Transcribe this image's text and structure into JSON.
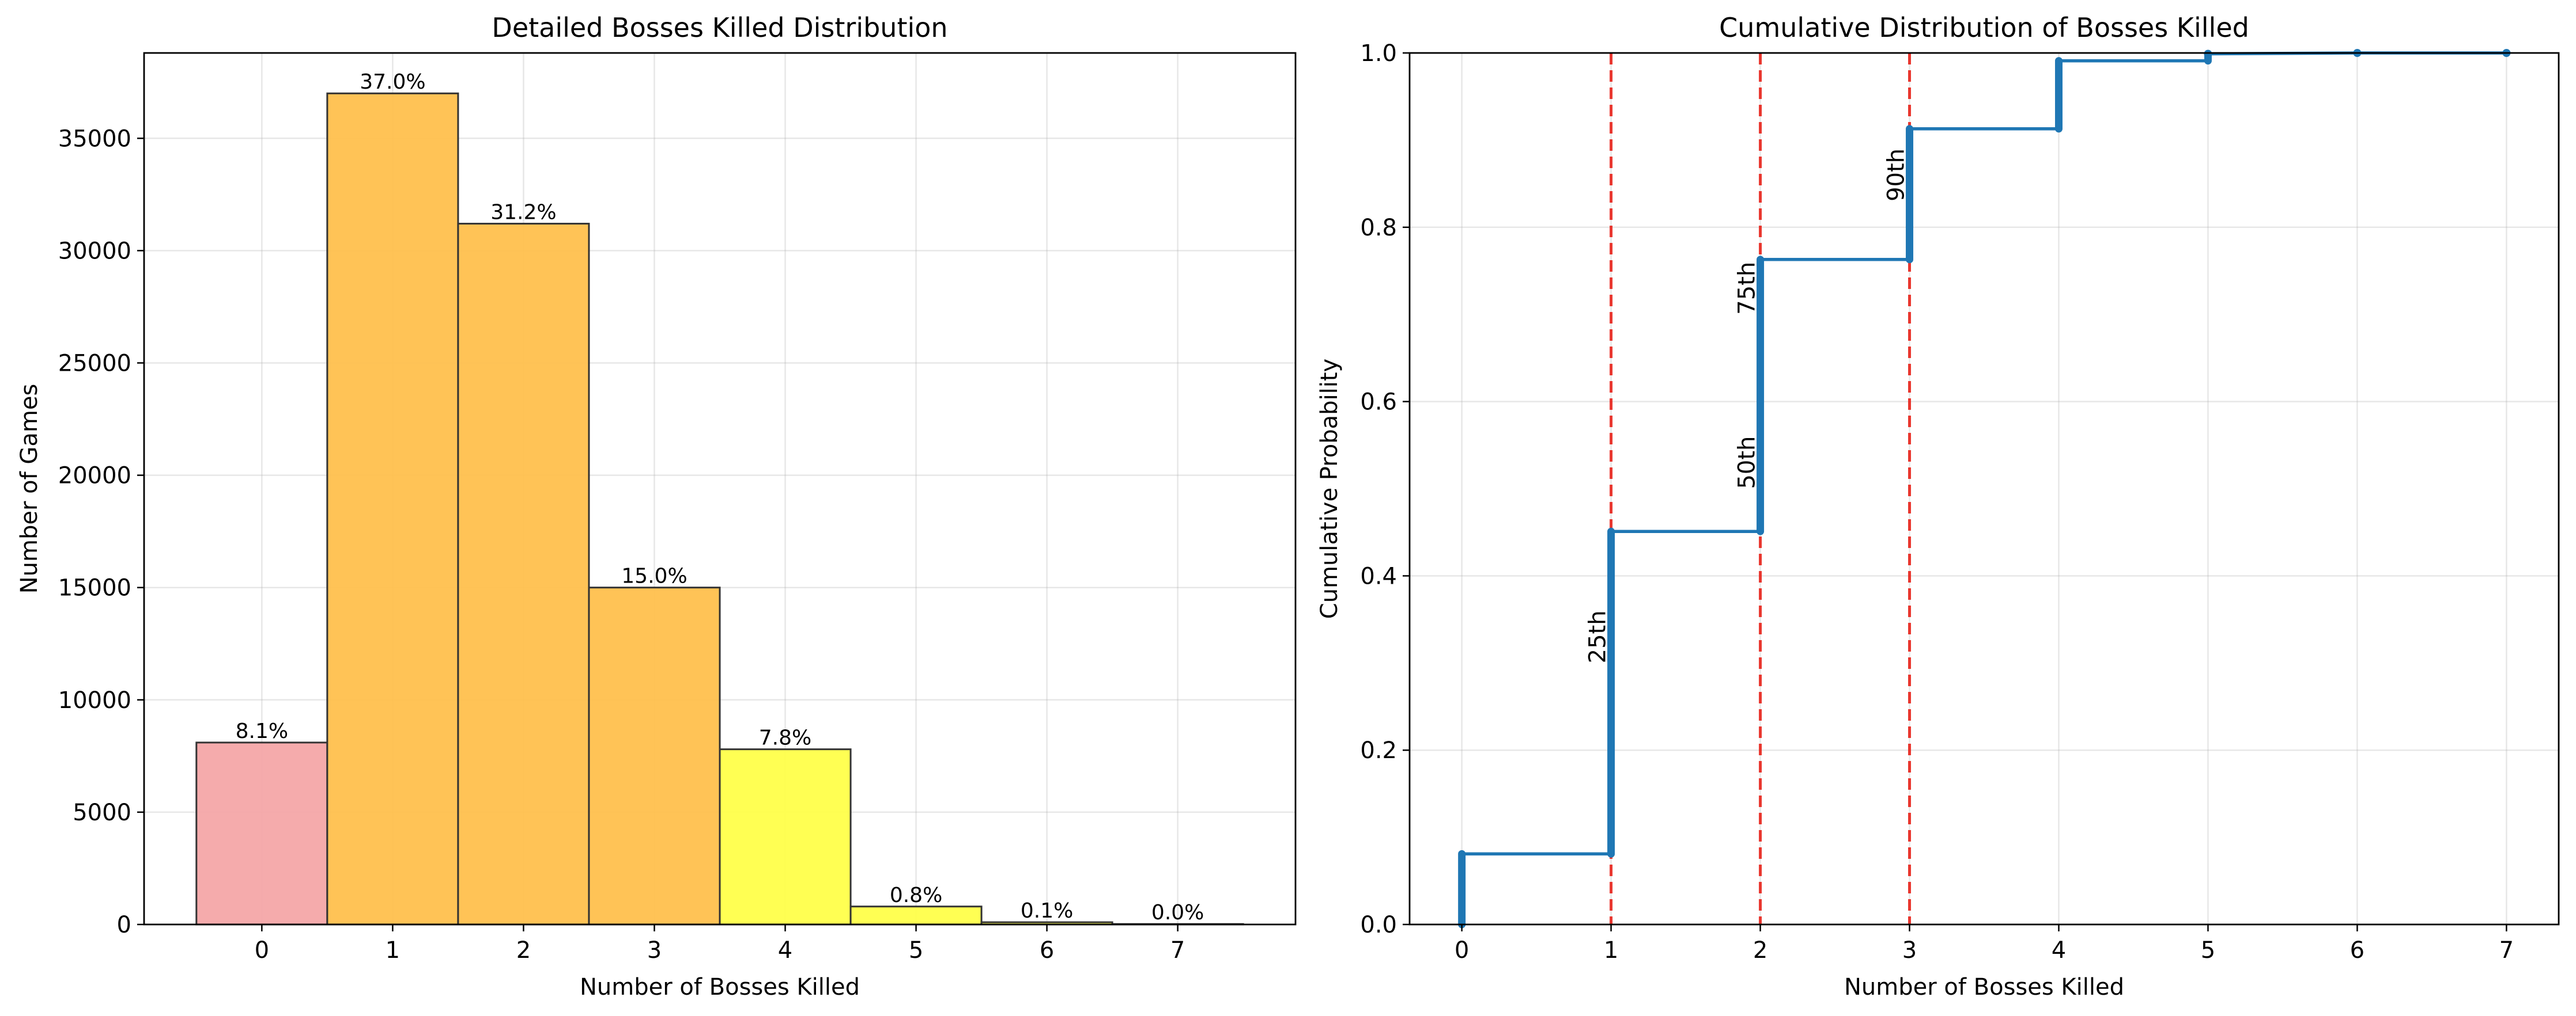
{
  "chart_data": [
    {
      "type": "bar",
      "title": "Detailed Bosses Killed Distribution",
      "xlabel": "Number of Bosses Killed",
      "ylabel": "Number of Games",
      "categories": [
        "0",
        "1",
        "2",
        "3",
        "4",
        "5",
        "6",
        "7"
      ],
      "values": [
        8100,
        37000,
        31200,
        15000,
        7800,
        800,
        100,
        20
      ],
      "bar_labels": [
        "8.1%",
        "37.0%",
        "31.2%",
        "15.0%",
        "7.8%",
        "0.8%",
        "0.1%",
        "0.0%"
      ],
      "bar_colors": [
        "#f4a6a8",
        "#ffc04d",
        "#ffc04d",
        "#ffc04d",
        "#ffff4a",
        "#ffff4a",
        "#ffff4a",
        "#ffff4a"
      ],
      "bar_edge_color": "#333333",
      "xlim": [
        -0.9,
        7.9
      ],
      "ylim": [
        0,
        38800
      ],
      "yticks": [
        0,
        5000,
        10000,
        15000,
        20000,
        25000,
        30000,
        35000
      ],
      "grid": true
    },
    {
      "type": "line",
      "title": "Cumulative Distribution of Bosses Killed",
      "xlabel": "Number of Bosses Killed",
      "ylabel": "Cumulative Probability",
      "series": [
        {
          "x": [
            0,
            0,
            1,
            1,
            2,
            2,
            3,
            3,
            4,
            4,
            5,
            5,
            6,
            7
          ],
          "y": [
            0.0,
            0.081,
            0.081,
            0.451,
            0.451,
            0.763,
            0.763,
            0.913,
            0.913,
            0.991,
            0.991,
            0.999,
            1.0,
            1.0
          ],
          "color": "#1f77b4"
        }
      ],
      "vertical_lines": [
        {
          "x": 1,
          "label": "25th",
          "label_y": 0.33
        },
        {
          "x": 2,
          "label": "50th",
          "label_y": 0.53
        },
        {
          "x": 2,
          "label": "75th",
          "label_y": 0.73
        },
        {
          "x": 3,
          "label": "90th",
          "label_y": 0.86
        }
      ],
      "vertical_line_color": "#e8221a",
      "xlim": [
        -0.35,
        7.35
      ],
      "ylim": [
        0,
        1.0
      ],
      "xticks": [
        0,
        1,
        2,
        3,
        4,
        5,
        6,
        7
      ],
      "yticks": [
        0.0,
        0.2,
        0.4,
        0.6,
        0.8,
        1.0
      ],
      "grid": true
    }
  ]
}
